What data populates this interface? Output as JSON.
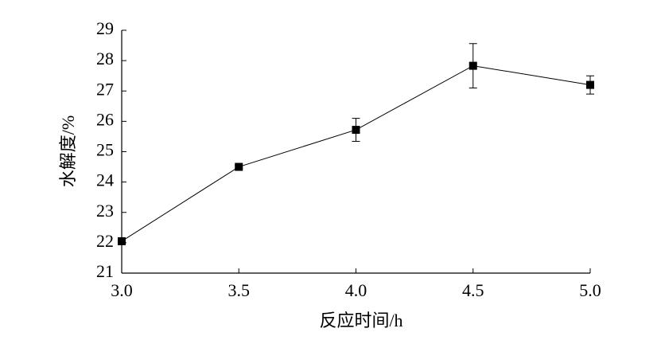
{
  "chart_data": {
    "type": "line",
    "xlabel": "反应时间/h",
    "ylabel": "水解度/%",
    "x": [
      3.0,
      3.5,
      4.0,
      4.5,
      5.0
    ],
    "values": [
      22.05,
      24.5,
      25.72,
      27.83,
      27.2
    ],
    "errors": [
      0.05,
      0.05,
      0.38,
      0.73,
      0.3
    ],
    "color": "#000000",
    "xlim": [
      3.0,
      5.0
    ],
    "xticks": [
      {
        "value": 3.0,
        "label": "3.0"
      },
      {
        "value": 3.5,
        "label": "3.5"
      },
      {
        "value": 4.0,
        "label": "4.0"
      },
      {
        "value": 4.5,
        "label": "4.5"
      },
      {
        "value": 5.0,
        "label": "5.0"
      }
    ],
    "ylim": [
      21,
      29
    ],
    "yticks": [
      21,
      22,
      23,
      24,
      25,
      26,
      27,
      28,
      29
    ]
  }
}
